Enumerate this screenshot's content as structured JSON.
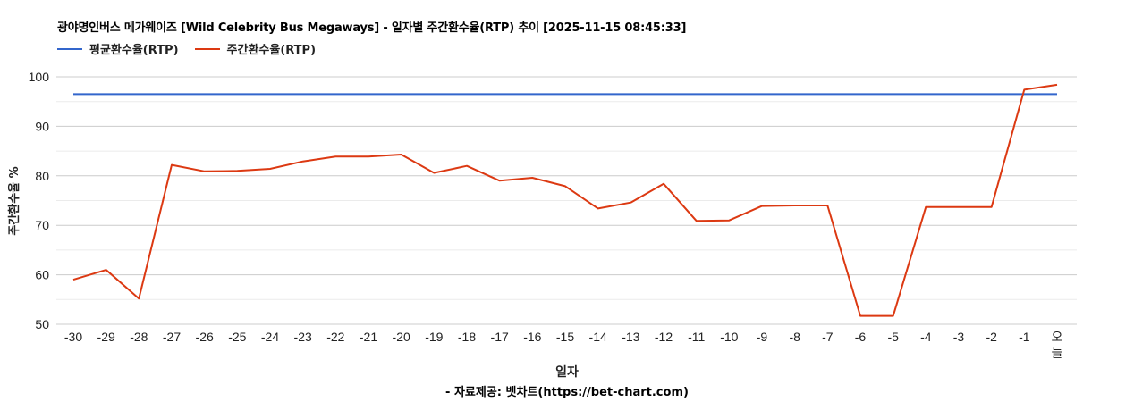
{
  "header": {
    "title": "광야명인버스 메가웨이즈 [Wild Celebrity Bus Megaways] - 일자별 주간환수율(RTP) 추이 [2025-11-15 08:45:33]"
  },
  "legend": [
    {
      "label": "평균환수율(RTP)",
      "color": "#3366CC"
    },
    {
      "label": "주간환수율(RTP)",
      "color": "#DC3912"
    }
  ],
  "axes": {
    "xlabel": "일자",
    "ylabel": "주간환수율 %"
  },
  "footer": {
    "source": "- 자료제공: 벳차트(https://bet-chart.com)"
  },
  "chart_data": {
    "type": "line",
    "title": "광야명인버스 메가웨이즈 [Wild Celebrity Bus Megaways] - 일자별 주간환수율(RTP) 추이 [2025-11-15 08:45:33]",
    "xlabel": "일자",
    "ylabel": "주간환수율 %",
    "ylim": [
      50,
      100
    ],
    "yticks": [
      50,
      60,
      70,
      80,
      90,
      100
    ],
    "grid": true,
    "legend_position": "top",
    "categories": [
      "-30",
      "-29",
      "-28",
      "-27",
      "-26",
      "-25",
      "-24",
      "-23",
      "-22",
      "-21",
      "-20",
      "-19",
      "-18",
      "-17",
      "-16",
      "-15",
      "-14",
      "-13",
      "-12",
      "-11",
      "-10",
      "-9",
      "-8",
      "-7",
      "-6",
      "-5",
      "-4",
      "-3",
      "-2",
      "-1",
      "오늘"
    ],
    "series": [
      {
        "name": "평균환수율(RTP)",
        "color": "#3366CC",
        "values": [
          96.5,
          96.5,
          96.5,
          96.5,
          96.5,
          96.5,
          96.5,
          96.5,
          96.5,
          96.5,
          96.5,
          96.5,
          96.5,
          96.5,
          96.5,
          96.5,
          96.5,
          96.5,
          96.5,
          96.5,
          96.5,
          96.5,
          96.5,
          96.5,
          96.5,
          96.5,
          96.5,
          96.5,
          96.5,
          96.5,
          96.5
        ]
      },
      {
        "name": "주간환수율(RTP)",
        "color": "#DC3912",
        "values": [
          59.0,
          61.0,
          55.2,
          82.2,
          80.9,
          81.0,
          81.4,
          82.9,
          83.9,
          83.9,
          84.3,
          80.6,
          82.0,
          79.0,
          79.6,
          77.9,
          73.4,
          74.6,
          78.4,
          70.9,
          71.0,
          73.9,
          74.0,
          74.0,
          51.7,
          51.7,
          73.7,
          73.7,
          73.7,
          97.4,
          98.4
        ]
      }
    ]
  }
}
